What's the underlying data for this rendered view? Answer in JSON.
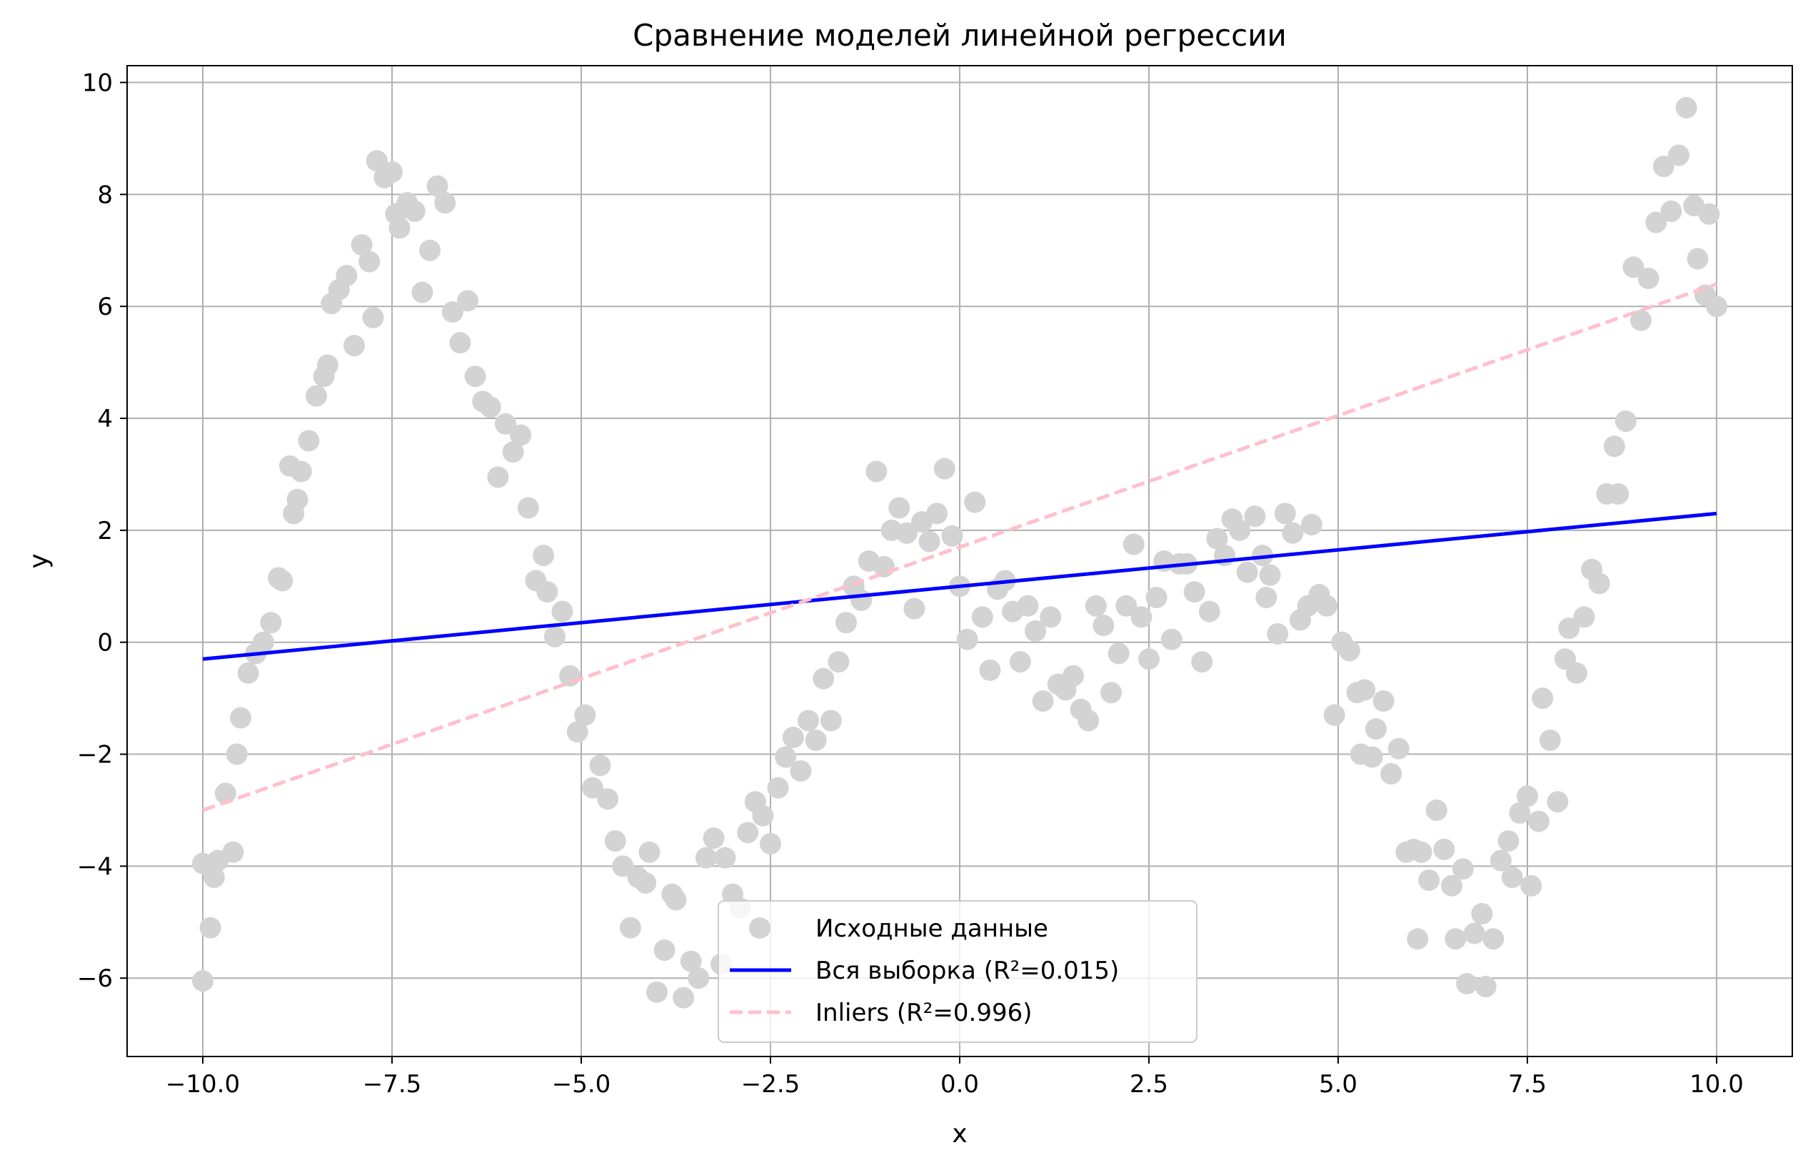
{
  "chart_data": {
    "type": "scatter",
    "title": "Сравнение моделей линейной регрессии",
    "xlabel": "x",
    "ylabel": "y",
    "xlim": [
      -11,
      11
    ],
    "ylim": [
      -7.4,
      10.3
    ],
    "grid": true,
    "legend_position": "bottom-center",
    "x_ticks": [
      -10,
      -7.5,
      -5,
      -2.5,
      0,
      2.5,
      5,
      7.5,
      10
    ],
    "x_tick_labels": [
      "−10.0",
      "−7.5",
      "−5.0",
      "−2.5",
      "0.0",
      "2.5",
      "5.0",
      "7.5",
      "10.0"
    ],
    "y_ticks": [
      -6,
      -4,
      -2,
      0,
      2,
      4,
      6,
      8,
      10
    ],
    "y_tick_labels": [
      "−6",
      "−4",
      "−2",
      "0",
      "2",
      "4",
      "6",
      "8",
      "10"
    ],
    "colors": {
      "points": "#d3d3d3",
      "full_fit": "#0000ff",
      "inliers_fit": "#ffc0cb",
      "grid": "#b0b0b0",
      "axes": "#000000"
    },
    "series": [
      {
        "name": "Исходные данные",
        "kind": "scatter",
        "points": [
          [
            -10.0,
            -6.05
          ],
          [
            -10.0,
            -3.95
          ],
          [
            -9.9,
            -5.1
          ],
          [
            -9.85,
            -4.2
          ],
          [
            -9.8,
            -3.9
          ],
          [
            -9.7,
            -2.7
          ],
          [
            -9.6,
            -3.75
          ],
          [
            -9.55,
            -2.0
          ],
          [
            -9.5,
            -1.35
          ],
          [
            -9.4,
            -0.55
          ],
          [
            -9.3,
            -0.2
          ],
          [
            -9.2,
            0.0
          ],
          [
            -9.1,
            0.35
          ],
          [
            -9.0,
            1.15
          ],
          [
            -8.95,
            1.1
          ],
          [
            -8.85,
            3.15
          ],
          [
            -8.8,
            2.3
          ],
          [
            -8.75,
            2.55
          ],
          [
            -8.7,
            3.05
          ],
          [
            -8.6,
            3.6
          ],
          [
            -8.5,
            4.4
          ],
          [
            -8.4,
            4.75
          ],
          [
            -8.35,
            4.95
          ],
          [
            -8.3,
            6.05
          ],
          [
            -8.2,
            6.3
          ],
          [
            -8.1,
            6.55
          ],
          [
            -8.0,
            5.3
          ],
          [
            -7.9,
            7.1
          ],
          [
            -7.8,
            6.8
          ],
          [
            -7.75,
            5.8
          ],
          [
            -7.7,
            8.6
          ],
          [
            -7.6,
            8.3
          ],
          [
            -7.5,
            8.4
          ],
          [
            -7.45,
            7.65
          ],
          [
            -7.4,
            7.4
          ],
          [
            -7.3,
            7.85
          ],
          [
            -7.2,
            7.7
          ],
          [
            -7.1,
            6.25
          ],
          [
            -7.0,
            7.0
          ],
          [
            -6.9,
            8.15
          ],
          [
            -6.8,
            7.85
          ],
          [
            -6.7,
            5.9
          ],
          [
            -6.6,
            5.35
          ],
          [
            -6.5,
            6.1
          ],
          [
            -6.4,
            4.75
          ],
          [
            -6.3,
            4.3
          ],
          [
            -6.2,
            4.2
          ],
          [
            -6.1,
            2.95
          ],
          [
            -6.0,
            3.9
          ],
          [
            -5.9,
            3.4
          ],
          [
            -5.8,
            3.7
          ],
          [
            -5.7,
            2.4
          ],
          [
            -5.6,
            1.1
          ],
          [
            -5.5,
            1.55
          ],
          [
            -5.45,
            0.9
          ],
          [
            -5.35,
            0.1
          ],
          [
            -5.25,
            0.55
          ],
          [
            -5.15,
            -0.6
          ],
          [
            -5.05,
            -1.6
          ],
          [
            -4.95,
            -1.3
          ],
          [
            -4.85,
            -2.6
          ],
          [
            -4.75,
            -2.2
          ],
          [
            -4.65,
            -2.8
          ],
          [
            -4.55,
            -3.55
          ],
          [
            -4.45,
            -4.0
          ],
          [
            -4.35,
            -5.1
          ],
          [
            -4.25,
            -4.2
          ],
          [
            -4.15,
            -4.3
          ],
          [
            -4.1,
            -3.75
          ],
          [
            -4.0,
            -6.25
          ],
          [
            -3.9,
            -5.5
          ],
          [
            -3.8,
            -4.5
          ],
          [
            -3.75,
            -4.6
          ],
          [
            -3.65,
            -6.35
          ],
          [
            -3.55,
            -5.7
          ],
          [
            -3.45,
            -6.0
          ],
          [
            -3.35,
            -3.85
          ],
          [
            -3.25,
            -3.5
          ],
          [
            -3.15,
            -5.75
          ],
          [
            -3.1,
            -3.85
          ],
          [
            -3.0,
            -4.5
          ],
          [
            -2.9,
            -4.75
          ],
          [
            -2.8,
            -3.4
          ],
          [
            -2.7,
            -2.85
          ],
          [
            -2.6,
            -3.1
          ],
          [
            -2.5,
            -3.6
          ],
          [
            -2.4,
            -2.6
          ],
          [
            -2.3,
            -2.05
          ],
          [
            -2.2,
            -1.7
          ],
          [
            -2.1,
            -2.3
          ],
          [
            -2.0,
            -1.4
          ],
          [
            -1.9,
            -1.75
          ],
          [
            -1.8,
            -0.65
          ],
          [
            -1.7,
            -1.4
          ],
          [
            -1.6,
            -0.35
          ],
          [
            -1.5,
            0.35
          ],
          [
            -1.4,
            1.0
          ],
          [
            -1.3,
            0.75
          ],
          [
            -1.2,
            1.45
          ],
          [
            -1.1,
            3.05
          ],
          [
            -1.0,
            1.35
          ],
          [
            -0.9,
            2.0
          ],
          [
            -0.8,
            2.4
          ],
          [
            -0.7,
            1.95
          ],
          [
            -0.6,
            0.6
          ],
          [
            -0.5,
            2.15
          ],
          [
            -0.4,
            1.8
          ],
          [
            -0.3,
            2.3
          ],
          [
            -0.2,
            3.1
          ],
          [
            -0.1,
            1.9
          ],
          [
            0.0,
            1.0
          ],
          [
            0.1,
            0.05
          ],
          [
            0.2,
            2.5
          ],
          [
            0.3,
            0.45
          ],
          [
            0.4,
            -0.5
          ],
          [
            0.5,
            0.95
          ],
          [
            0.6,
            1.1
          ],
          [
            0.7,
            0.55
          ],
          [
            0.8,
            -0.35
          ],
          [
            0.9,
            0.65
          ],
          [
            1.0,
            0.2
          ],
          [
            1.1,
            -1.05
          ],
          [
            1.2,
            0.45
          ],
          [
            1.3,
            -0.75
          ],
          [
            1.4,
            -0.85
          ],
          [
            1.5,
            -0.6
          ],
          [
            1.6,
            -1.2
          ],
          [
            1.7,
            -1.4
          ],
          [
            1.8,
            0.65
          ],
          [
            1.9,
            0.3
          ],
          [
            2.0,
            -0.9
          ],
          [
            2.1,
            -0.2
          ],
          [
            2.2,
            0.65
          ],
          [
            2.3,
            1.75
          ],
          [
            2.4,
            0.45
          ],
          [
            2.5,
            -0.3
          ],
          [
            2.6,
            0.8
          ],
          [
            2.7,
            1.45
          ],
          [
            2.8,
            0.05
          ],
          [
            2.9,
            1.4
          ],
          [
            3.0,
            1.4
          ],
          [
            3.1,
            0.9
          ],
          [
            3.2,
            -0.35
          ],
          [
            3.3,
            0.55
          ],
          [
            3.4,
            1.85
          ],
          [
            3.5,
            1.55
          ],
          [
            3.6,
            2.2
          ],
          [
            3.7,
            2.0
          ],
          [
            3.8,
            1.25
          ],
          [
            3.9,
            2.25
          ],
          [
            4.0,
            1.55
          ],
          [
            4.05,
            0.8
          ],
          [
            4.1,
            1.2
          ],
          [
            4.2,
            0.15
          ],
          [
            4.3,
            2.3
          ],
          [
            4.4,
            1.95
          ],
          [
            4.5,
            0.4
          ],
          [
            4.6,
            0.65
          ],
          [
            4.65,
            2.1
          ],
          [
            4.75,
            0.85
          ],
          [
            4.85,
            0.65
          ],
          [
            4.95,
            -1.3
          ],
          [
            5.05,
            0.0
          ],
          [
            5.15,
            -0.15
          ],
          [
            5.25,
            -0.9
          ],
          [
            5.3,
            -2.0
          ],
          [
            5.35,
            -0.85
          ],
          [
            5.45,
            -2.05
          ],
          [
            5.5,
            -1.55
          ],
          [
            5.6,
            -1.05
          ],
          [
            5.7,
            -2.35
          ],
          [
            5.8,
            -1.9
          ],
          [
            5.9,
            -3.75
          ],
          [
            6.0,
            -3.7
          ],
          [
            6.05,
            -5.3
          ],
          [
            6.1,
            -3.75
          ],
          [
            6.2,
            -4.25
          ],
          [
            6.3,
            -3.0
          ],
          [
            6.4,
            -3.7
          ],
          [
            6.5,
            -4.35
          ],
          [
            6.55,
            -5.3
          ],
          [
            6.65,
            -4.05
          ],
          [
            6.7,
            -6.1
          ],
          [
            6.8,
            -5.2
          ],
          [
            6.9,
            -4.85
          ],
          [
            6.95,
            -6.15
          ],
          [
            7.05,
            -5.3
          ],
          [
            7.15,
            -3.9
          ],
          [
            7.25,
            -3.55
          ],
          [
            7.3,
            -4.2
          ],
          [
            7.4,
            -3.05
          ],
          [
            7.5,
            -2.75
          ],
          [
            7.55,
            -4.35
          ],
          [
            7.65,
            -3.2
          ],
          [
            7.7,
            -1.0
          ],
          [
            7.8,
            -1.75
          ],
          [
            7.9,
            -2.85
          ],
          [
            8.0,
            -0.3
          ],
          [
            8.05,
            0.25
          ],
          [
            8.15,
            -0.55
          ],
          [
            8.25,
            0.45
          ],
          [
            8.35,
            1.3
          ],
          [
            8.45,
            1.05
          ],
          [
            8.55,
            2.65
          ],
          [
            8.65,
            3.5
          ],
          [
            8.7,
            2.65
          ],
          [
            8.8,
            3.95
          ],
          [
            8.9,
            6.7
          ],
          [
            9.0,
            5.75
          ],
          [
            9.1,
            6.5
          ],
          [
            9.2,
            7.5
          ],
          [
            9.3,
            8.5
          ],
          [
            9.4,
            7.7
          ],
          [
            9.5,
            8.7
          ],
          [
            9.6,
            9.55
          ],
          [
            9.7,
            7.8
          ],
          [
            9.75,
            6.85
          ],
          [
            9.85,
            6.2
          ],
          [
            9.9,
            7.65
          ],
          [
            10.0,
            6.0
          ]
        ]
      },
      {
        "name": "Вся выборка (R²=0.015)",
        "kind": "line",
        "style": "solid",
        "points": [
          [
            -10.0,
            -0.3
          ],
          [
            10.0,
            2.3
          ]
        ]
      },
      {
        "name": "Inliers (R²=0.996)",
        "kind": "line",
        "style": "dashed",
        "points": [
          [
            -10.0,
            -3.0
          ],
          [
            10.0,
            6.4
          ]
        ]
      }
    ]
  }
}
